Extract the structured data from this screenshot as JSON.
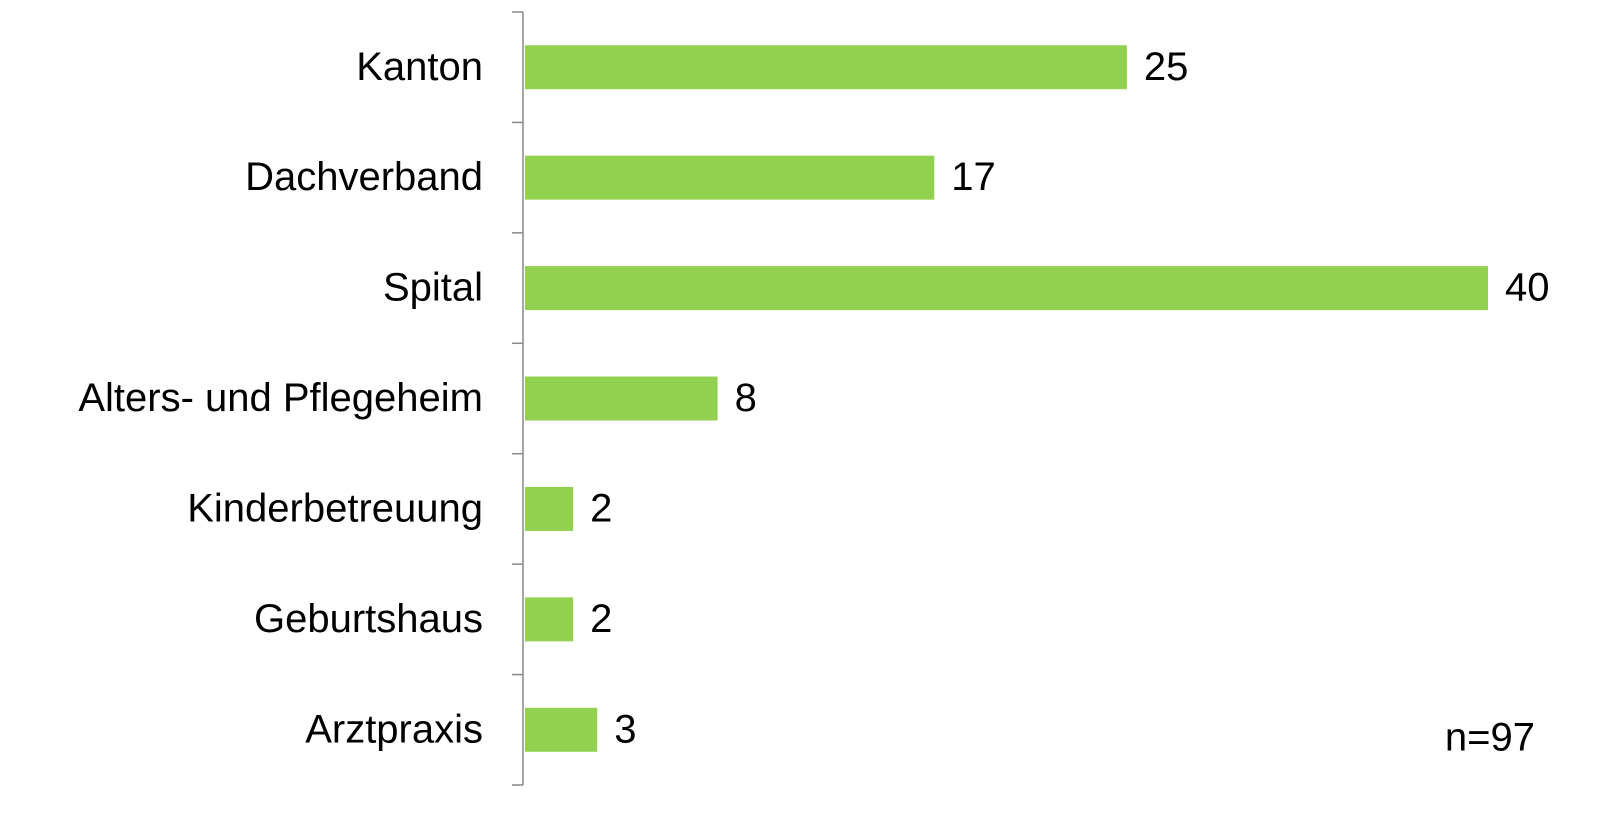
{
  "chart_data": {
    "type": "barh",
    "categories": [
      "Kanton",
      "Dachverband",
      "Spital",
      "Alters- und Pflegeheim",
      "Kinderbetreuung",
      "Geburtshaus",
      "Arztpraxis"
    ],
    "values": [
      25,
      17,
      40,
      8,
      2,
      2,
      3
    ],
    "color": "#92d050",
    "annotation": "n=97"
  }
}
